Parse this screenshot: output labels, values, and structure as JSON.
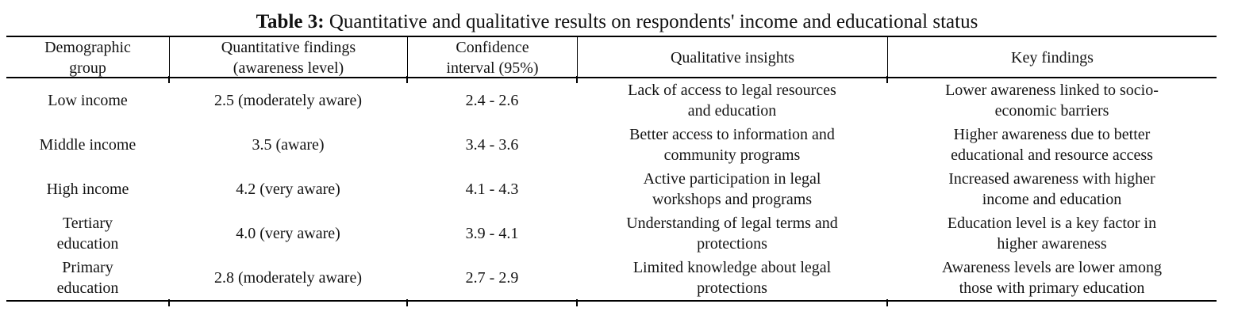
{
  "caption": {
    "label": "Table 3:",
    "text": " Quantitative and qualitative results on respondents' income and educational status"
  },
  "table": {
    "headers": [
      "Demographic\ngroup",
      "Quantitative findings\n(awareness level)",
      "Confidence\ninterval (95%)",
      "Qualitative insights",
      "Key findings"
    ],
    "rows": [
      {
        "cells": [
          "Low income",
          "2.5 (moderately aware)",
          "2.4 - 2.6",
          "Lack of access to legal resources\nand education",
          "Lower awareness linked to socio-\neconomic barriers"
        ]
      },
      {
        "cells": [
          "Middle income",
          "3.5 (aware)",
          "3.4 - 3.6",
          "Better access to information and\ncommunity programs",
          "Higher awareness due to better\neducational and resource access"
        ]
      },
      {
        "cells": [
          "High income",
          "4.2 (very aware)",
          "4.1 - 4.3",
          "Active participation in legal\nworkshops and programs",
          "Increased awareness with higher\nincome and education"
        ]
      },
      {
        "cells": [
          "Tertiary\neducation",
          "4.0 (very aware)",
          "3.9 - 4.1",
          "Understanding of legal terms and\nprotections",
          "Education level is a key factor in\nhigher awareness"
        ]
      },
      {
        "cells": [
          "Primary\neducation",
          "2.8 (moderately aware)",
          "2.7 - 2.9",
          "Limited knowledge about legal\nprotections",
          "Awareness levels are lower among\nthose with primary education"
        ]
      }
    ]
  }
}
